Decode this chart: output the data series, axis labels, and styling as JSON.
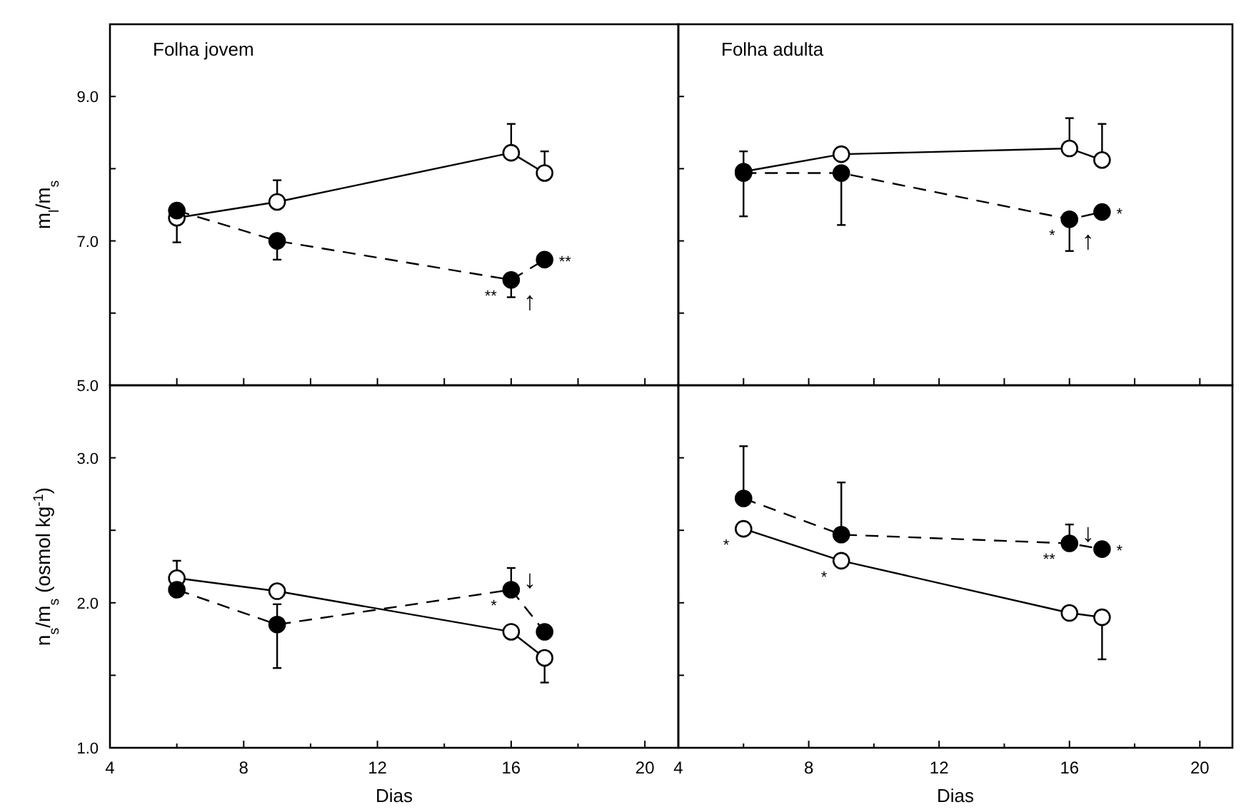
{
  "chart_data": [
    {
      "type": "line",
      "title": "Folha jovem",
      "ylabel": "m$_{l}$/m$_{s}$",
      "xlim": [
        4,
        21
      ],
      "ylim": [
        5,
        10
      ],
      "xticks": [
        {
          "value": 4,
          "label": null
        },
        {
          "value": 6,
          "label": null
        },
        {
          "value": 8,
          "label": null
        },
        {
          "value": 10,
          "label": null
        },
        {
          "value": 12,
          "label": null
        },
        {
          "value": 14,
          "label": null
        },
        {
          "value": 16,
          "label": null
        },
        {
          "value": 18,
          "label": null
        },
        {
          "value": 20,
          "label": null
        }
      ],
      "yticks": [
        {
          "value": 5,
          "label": "5.0"
        },
        {
          "value": 6,
          "label": null
        },
        {
          "value": 7,
          "label": "7.0"
        },
        {
          "value": 8,
          "label": null
        },
        {
          "value": 9,
          "label": "9.0"
        }
      ],
      "tick_labels": "y",
      "marker": "circle",
      "x": [
        6,
        9,
        16,
        17
      ],
      "series": [
        {
          "color": "#000000",
          "line_style": "solid",
          "values": [
            7.32,
            7.54,
            8.22,
            7.94
          ],
          "errors": [
            [
              6.98,
              7.32
            ],
            [
              7.54,
              7.84
            ],
            [
              8.22,
              8.62
            ],
            [
              7.94,
              8.24
            ]
          ]
        },
        {
          "color": "#000000",
          "line_style": "dashed",
          "values": [
            7.42,
            7.0,
            6.46,
            6.74
          ],
          "errors": [
            null,
            [
              6.74,
              7.0
            ],
            [
              6.22,
              6.46
            ],
            null
          ]
        }
      ],
      "annotations": [
        {
          "text": "**",
          "x": 16,
          "y": 6.46
        },
        {
          "text": "**",
          "x": 17,
          "y": 6.74
        },
        {
          "text": "↑",
          "x": 16,
          "y": 6.46
        }
      ]
    },
    {
      "type": "line",
      "title": "Folha adulta",
      "xlim": [
        4,
        21
      ],
      "ylim": [
        5,
        10
      ],
      "xticks": [
        {
          "value": 4,
          "label": null
        },
        {
          "value": 6,
          "label": null
        },
        {
          "value": 8,
          "label": null
        },
        {
          "value": 10,
          "label": null
        },
        {
          "value": 12,
          "label": null
        },
        {
          "value": 14,
          "label": null
        },
        {
          "value": 16,
          "label": null
        },
        {
          "value": 18,
          "label": null
        },
        {
          "value": 20,
          "label": null
        }
      ],
      "yticks": [
        {
          "value": 5,
          "label": null
        },
        {
          "value": 6,
          "label": null
        },
        {
          "value": 7,
          "label": null
        },
        {
          "value": 8,
          "label": null
        },
        {
          "value": 9,
          "label": null
        }
      ],
      "tick_labels": false,
      "marker": "circle",
      "x": [
        6,
        9,
        16,
        17
      ],
      "series": [
        {
          "color": "#000000",
          "line_style": "solid",
          "values": [
            7.96,
            8.2,
            8.28,
            8.12
          ],
          "errors": [
            null,
            null,
            [
              8.28,
              8.7
            ],
            [
              8.12,
              8.62
            ]
          ]
        },
        {
          "color": "#000000",
          "line_style": "dashed",
          "values": [
            7.94,
            7.94,
            7.3,
            7.4
          ],
          "errors": [
            [
              7.34,
              8.24
            ],
            [
              7.22,
              7.94
            ],
            [
              6.86,
              7.3
            ],
            null
          ]
        }
      ],
      "annotations": [
        {
          "text": "*",
          "x": 16,
          "y": 7.3
        },
        {
          "text": "*",
          "x": 17,
          "y": 7.4
        },
        {
          "text": "↑",
          "x": 16,
          "y": 7.3
        }
      ]
    },
    {
      "type": "line",
      "xlabel": "Dias",
      "ylabel": "n$_{s}$/m$_{s}$ (osmol kg$^{-1}$)",
      "xlim": [
        4,
        21
      ],
      "ylim": [
        1,
        3.5
      ],
      "xticks": [
        4,
        {
          "value": 6,
          "label": null
        },
        8,
        {
          "value": 10,
          "label": null
        },
        12,
        {
          "value": 14,
          "label": null
        },
        16,
        {
          "value": 18,
          "label": null
        },
        20
      ],
      "yticks": [
        {
          "value": 1,
          "label": "1.0"
        },
        {
          "value": 1.5,
          "label": null
        },
        {
          "value": 2,
          "label": "2.0"
        },
        {
          "value": 2.5,
          "label": null
        },
        {
          "value": 3,
          "label": "3.0"
        }
      ],
      "marker": "circle",
      "x": [
        6,
        9,
        16,
        17
      ],
      "series": [
        {
          "color": "#000000",
          "line_style": "solid",
          "values": [
            2.17,
            2.08,
            1.8,
            1.62
          ],
          "errors": [
            [
              2.17,
              2.29
            ],
            null,
            null,
            [
              1.45,
              1.62
            ]
          ]
        },
        {
          "color": "#000000",
          "line_style": "dashed",
          "values": [
            2.09,
            1.85,
            2.09,
            1.8
          ],
          "errors": [
            null,
            [
              1.55,
              1.99
            ],
            [
              2.09,
              2.24
            ],
            null
          ]
        }
      ],
      "annotations": [
        {
          "text": "*",
          "x": 16,
          "y": 2.09
        },
        {
          "text": "↓",
          "x": 16,
          "y": 2.09
        }
      ]
    },
    {
      "type": "line",
      "xlabel": "Dias",
      "xlim": [
        4,
        21
      ],
      "ylim": [
        1,
        3.5
      ],
      "xticks": [
        4,
        {
          "value": 6,
          "label": null
        },
        8,
        {
          "value": 10,
          "label": null
        },
        12,
        {
          "value": 14,
          "label": null
        },
        16,
        {
          "value": 18,
          "label": null
        },
        20
      ],
      "yticks": [
        {
          "value": 1,
          "label": null
        },
        {
          "value": 1.5,
          "label": null
        },
        {
          "value": 2,
          "label": null
        },
        {
          "value": 2.5,
          "label": null
        },
        {
          "value": 3,
          "label": null
        }
      ],
      "tick_labels": "x",
      "marker": "circle",
      "x": [
        6,
        9,
        16,
        17
      ],
      "series": [
        {
          "color": "#000000",
          "line_style": "solid",
          "values": [
            2.51,
            2.29,
            1.93,
            1.9
          ],
          "errors": [
            null,
            null,
            null,
            [
              1.61,
              1.9
            ]
          ]
        },
        {
          "color": "#000000",
          "line_style": "dashed",
          "values": [
            2.72,
            2.47,
            2.41,
            2.37
          ],
          "errors": [
            [
              2.72,
              3.08
            ],
            [
              2.47,
              2.83
            ],
            [
              2.41,
              2.54
            ],
            null
          ]
        }
      ],
      "annotations": [
        {
          "text": "*",
          "x": 6,
          "y": 2.51
        },
        {
          "text": "*",
          "x": 9,
          "y": 2.29
        },
        {
          "text": "**",
          "x": 16,
          "y": 2.41
        },
        {
          "text": "*",
          "x": 17,
          "y": 2.37
        },
        {
          "text": "↓",
          "x": 16,
          "y": 2.41
        }
      ]
    }
  ]
}
